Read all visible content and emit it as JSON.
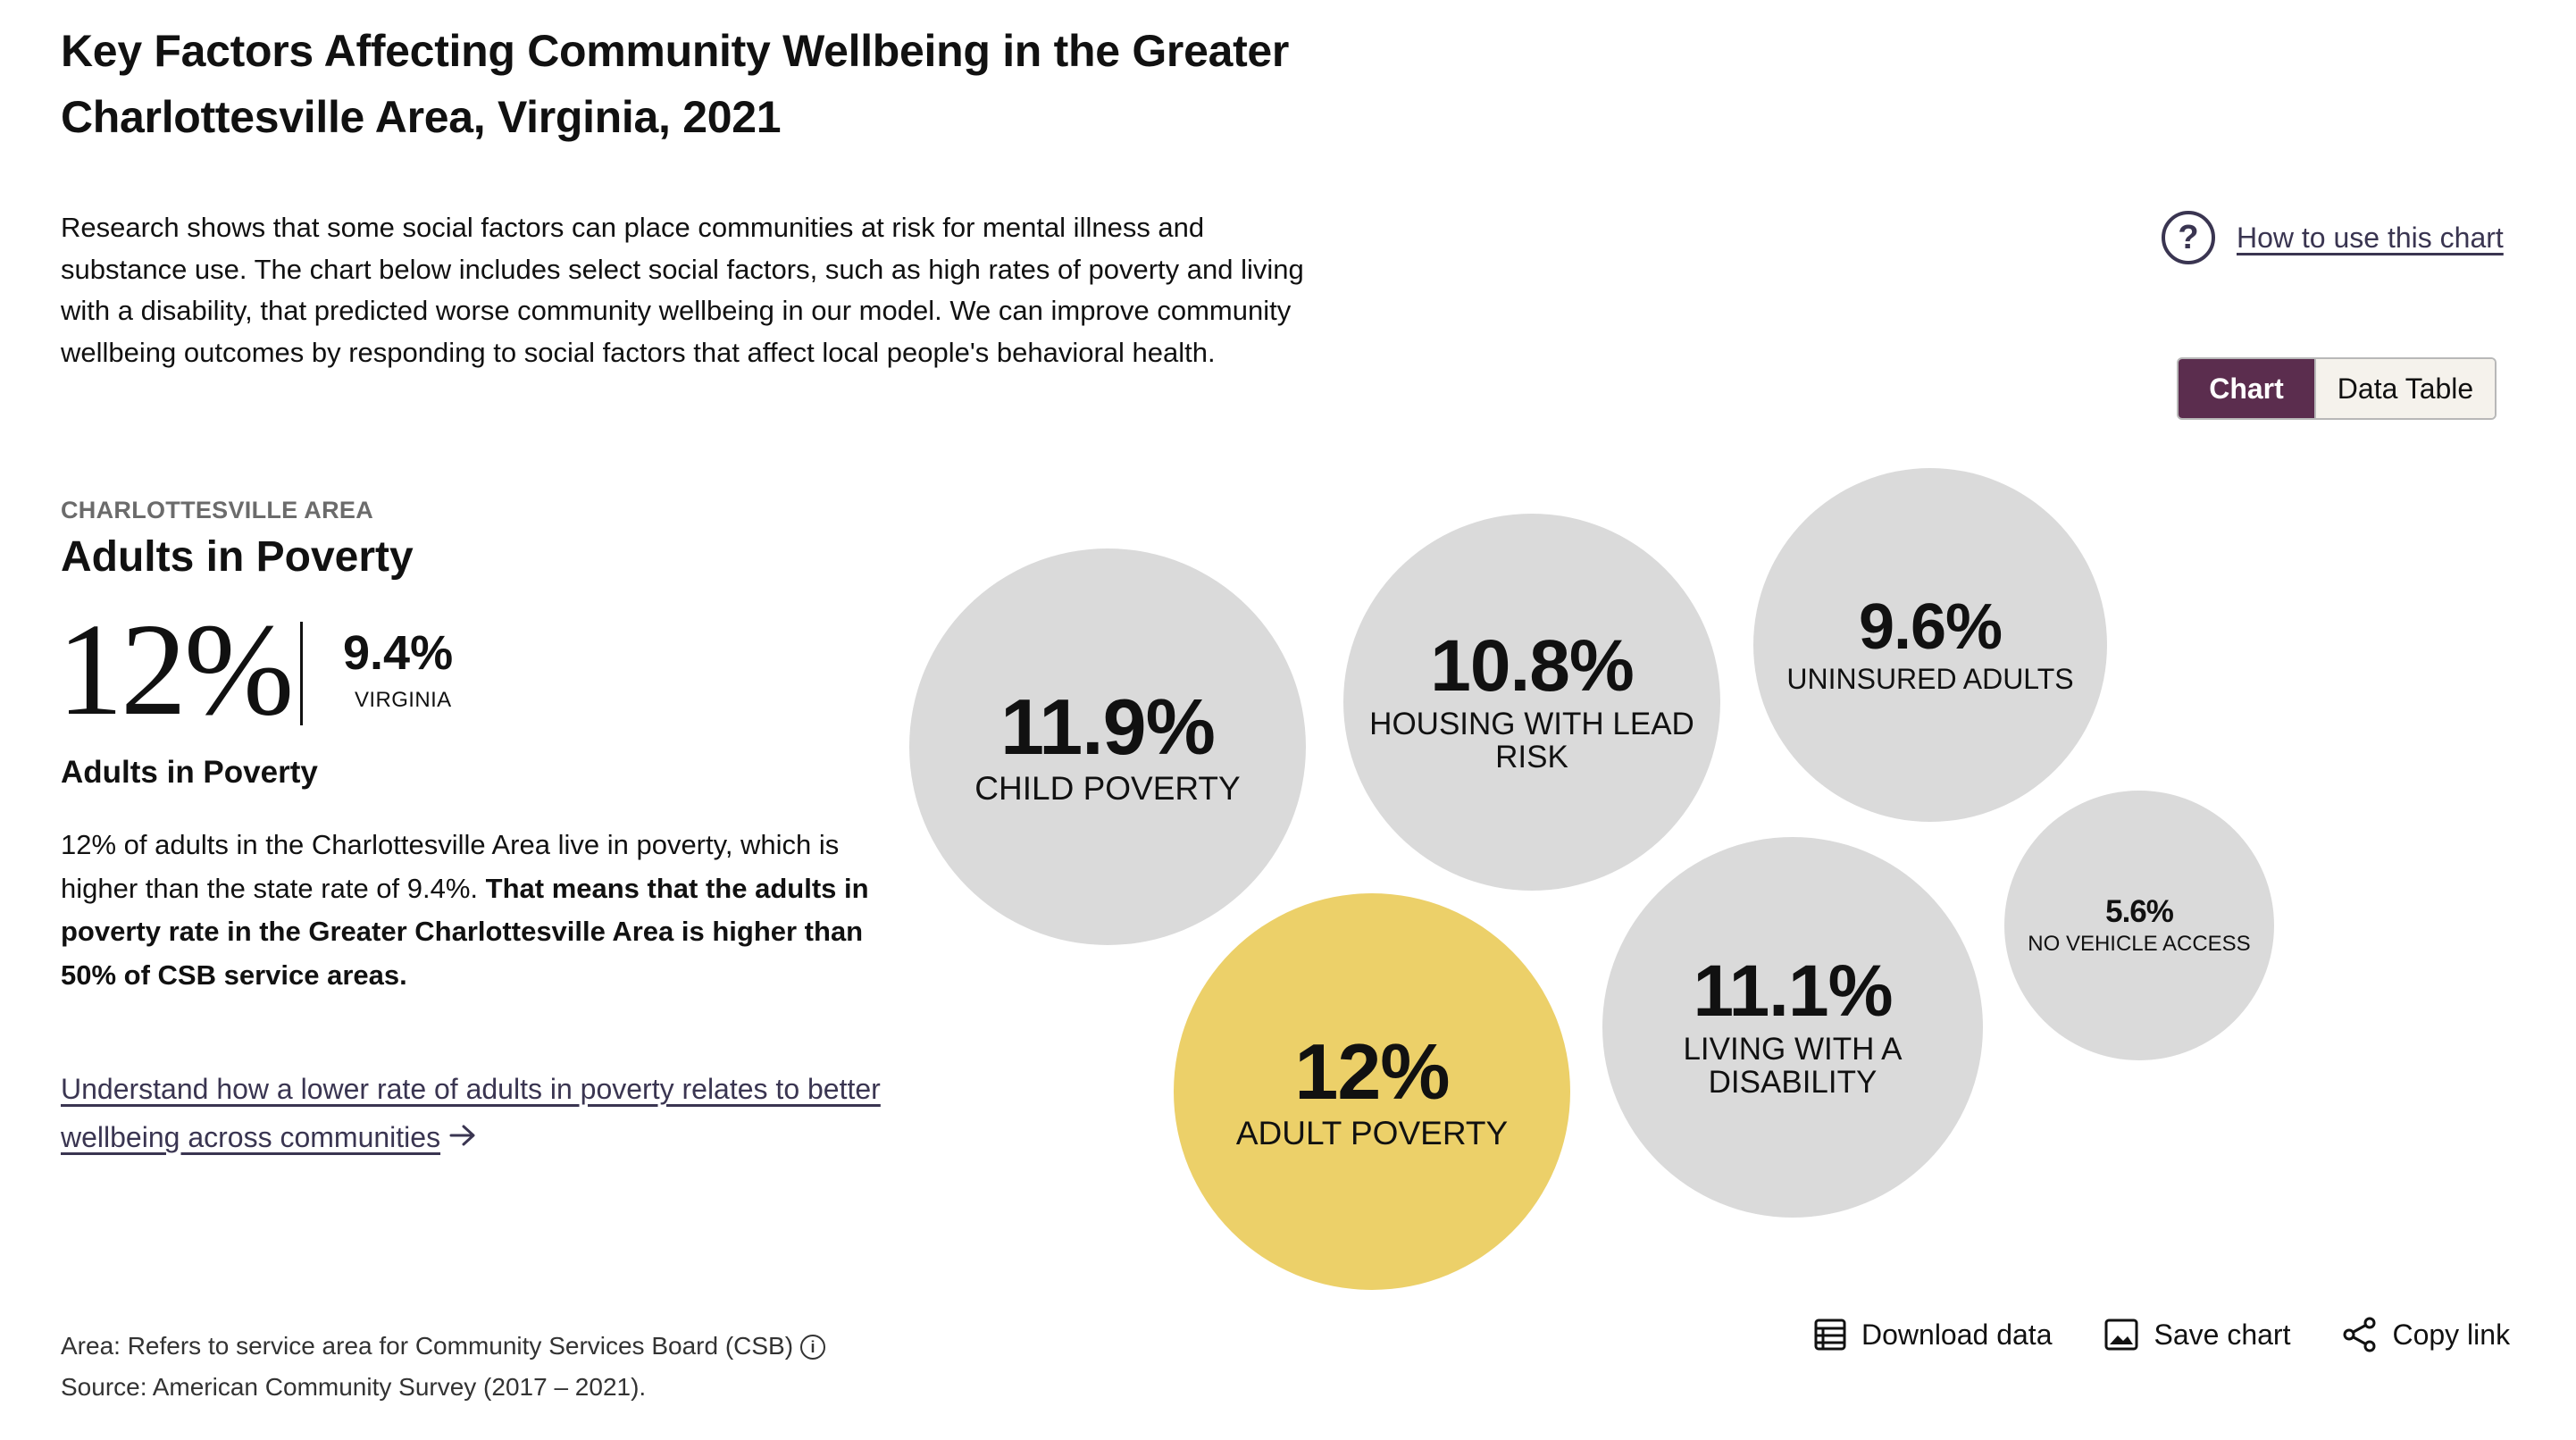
{
  "header": {
    "title": "Key Factors Affecting Community Wellbeing in the Greater Charlottesville Area, Virginia, 2021",
    "intro": "Research shows that some social factors can place communities at risk for mental illness and substance use. The chart below includes select social factors, such as high rates of poverty and living with a disability, that predicted worse community wellbeing in our model. We can improve community wellbeing outcomes by responding to social factors that affect local people's behavioral health."
  },
  "help": {
    "icon": "question-circle-icon",
    "label": "How to use this chart"
  },
  "view_toggle": {
    "chart_label": "Chart",
    "table_label": "Data Table",
    "selected": "Chart"
  },
  "detail": {
    "area_label": "CHARLOTTESVILLE AREA",
    "metric_title": "Adults in Poverty",
    "local_value": "12%",
    "state_value": "9.4%",
    "state_label": "VIRGINIA",
    "metric_subtitle": "Adults in Poverty",
    "description_plain": "12% of adults in the Charlottesville Area live in poverty, which is higher than the state rate of 9.4%.",
    "description_bold": "That means that the adults in poverty rate in the Greater Charlottesville Area is higher than 50% of CSB service areas.",
    "learn_more_link": "Understand how a lower rate of adults in poverty relates to better wellbeing across communities"
  },
  "chart_data": {
    "type": "bubble",
    "unit": "%",
    "highlight_color": "#ecd069",
    "default_color": "#dadada",
    "bubbles": [
      {
        "label": "CHILD POVERTY",
        "value": 11.9,
        "display": "11.9%",
        "selected": false
      },
      {
        "label": "HOUSING WITH LEAD RISK",
        "value": 10.8,
        "display": "10.8%",
        "selected": false
      },
      {
        "label": "UNINSURED ADULTS",
        "value": 9.6,
        "display": "9.6%",
        "selected": false
      },
      {
        "label": "ADULT POVERTY",
        "value": 12,
        "display": "12%",
        "selected": true
      },
      {
        "label": "LIVING WITH A DISABILITY",
        "value": 11.1,
        "display": "11.1%",
        "selected": false
      },
      {
        "label": "NO VEHICLE ACCESS",
        "value": 5.6,
        "display": "5.6%",
        "selected": false
      }
    ]
  },
  "footer": {
    "area_note": "Area: Refers to service area for Community Services Board (CSB)",
    "source": "Source: American Community Survey (2017 – 2021).",
    "download_label": "Download data",
    "save_label": "Save chart",
    "copy_label": "Copy link"
  },
  "colors": {
    "accent": "#5b2d4e",
    "link": "#3a3551"
  }
}
